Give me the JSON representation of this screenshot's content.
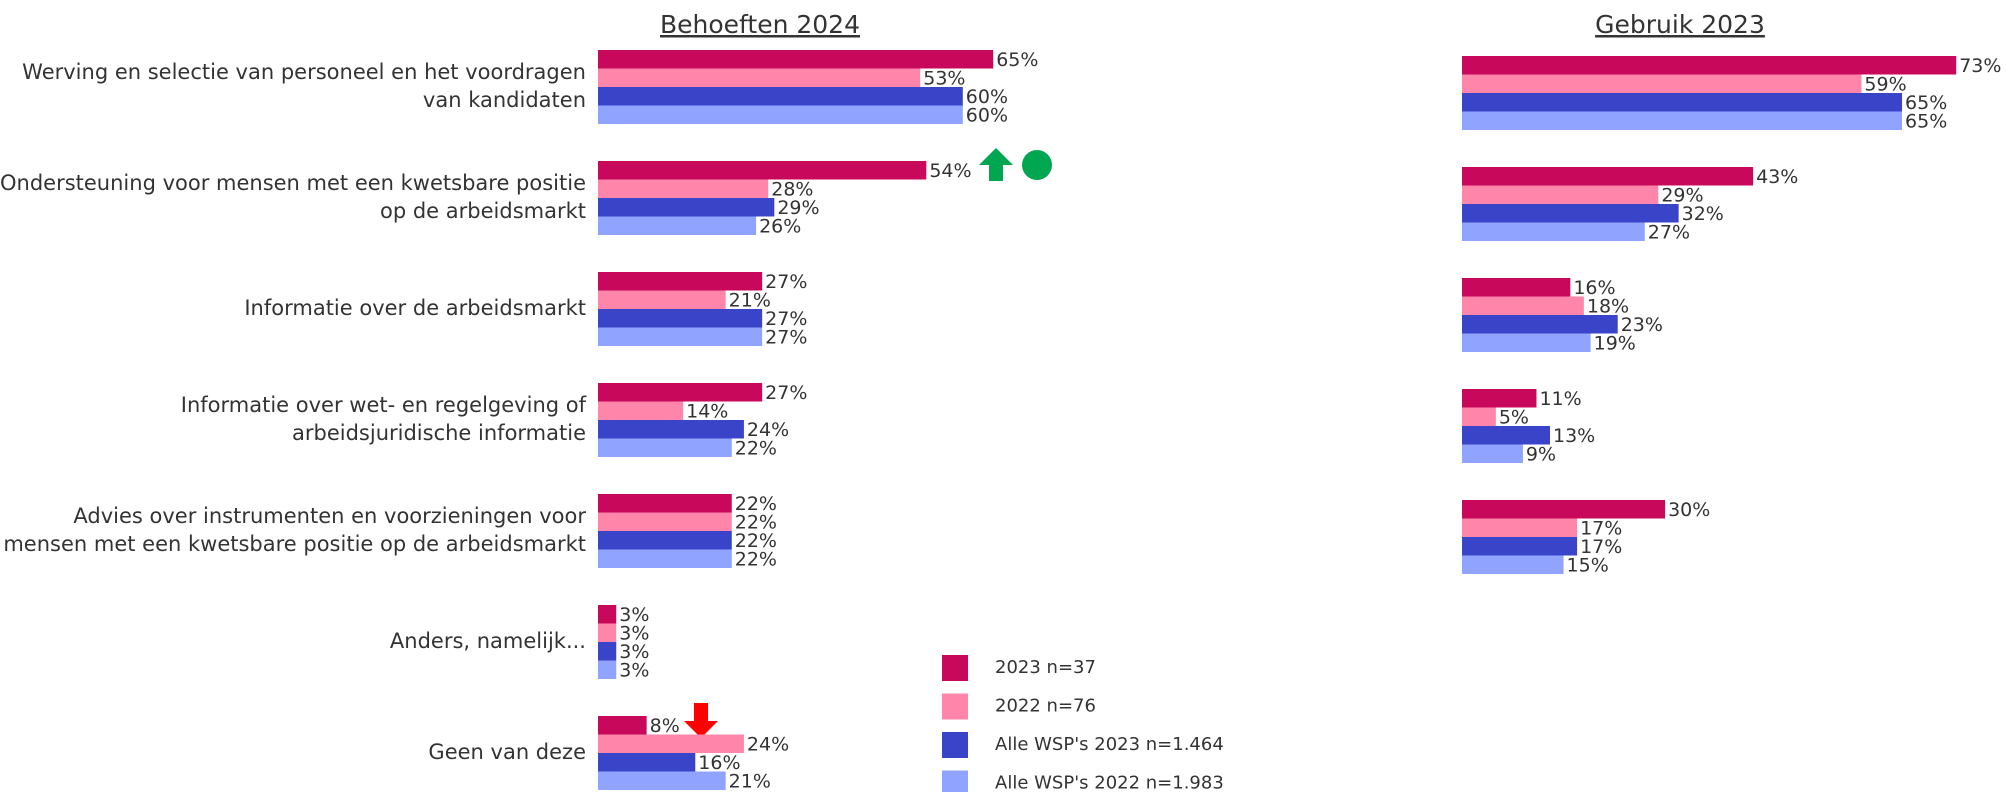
{
  "chart_data": [
    {
      "type": "bar",
      "orientation": "horizontal",
      "title": "Behoeften 2024",
      "categories": [
        [
          "Werving en selectie van personeel en het voordragen",
          "van kandidaten"
        ],
        [
          "Ondersteuning voor mensen met een kwetsbare positie",
          "op de arbeidsmarkt"
        ],
        [
          "Informatie over de arbeidsmarkt"
        ],
        [
          "Informatie over wet- en regelgeving of",
          "arbeidsjuridische informatie"
        ],
        [
          "Advies over instrumenten en voorzieningen voor",
          "mensen met een kwetsbare positie op de arbeidsmarkt"
        ],
        [
          "Anders, namelijk..."
        ],
        [
          "Geen van deze"
        ]
      ],
      "series": [
        {
          "name": "2023 n=37",
          "color": "#c8085a",
          "values": [
            65,
            54,
            27,
            27,
            22,
            3,
            8
          ],
          "value_labels": [
            "65%",
            "54%",
            "27%",
            "27%",
            "22%",
            "3%",
            "8%"
          ]
        },
        {
          "name": "2022 n=76",
          "color": "#ff85aa",
          "values": [
            53,
            28,
            21,
            14,
            22,
            3,
            24
          ],
          "value_labels": [
            "53%",
            "28%",
            "21%",
            "14%",
            "22%",
            "3%",
            "24%"
          ]
        },
        {
          "name": "Alle WSP's 2023 n=1.464",
          "color": "#3a44c8",
          "values": [
            60,
            29,
            27,
            24,
            22,
            3,
            16
          ],
          "value_labels": [
            "60%",
            "29%",
            "27%",
            "24%",
            "22%",
            "3%",
            "16%"
          ]
        },
        {
          "name": "Alle WSP's 2022 n=1.983",
          "color": "#8fa3ff",
          "values": [
            60,
            26,
            27,
            22,
            22,
            3,
            21
          ],
          "value_labels": [
            "60%",
            "26%",
            "27%",
            "22%",
            "22%",
            "3%",
            "21%"
          ]
        }
      ]
    },
    {
      "type": "bar",
      "orientation": "horizontal",
      "title": "Gebruik 2023",
      "series": [
        {
          "color": "#c8085a",
          "values": [
            73,
            43,
            16,
            11,
            30
          ],
          "value_labels": [
            "73%",
            "43%",
            "16%",
            "11%",
            "30%"
          ]
        },
        {
          "color": "#ff85aa",
          "values": [
            59,
            29,
            18,
            5,
            17
          ],
          "value_labels": [
            "59%",
            "29%",
            "18%",
            "5%",
            "17%"
          ]
        },
        {
          "color": "#3a44c8",
          "values": [
            65,
            32,
            23,
            13,
            17
          ],
          "value_labels": [
            "65%",
            "32%",
            "23%",
            "13%",
            "17%"
          ]
        },
        {
          "color": "#8fa3ff",
          "values": [
            65,
            27,
            19,
            9,
            15
          ],
          "value_labels": [
            "65%",
            "27%",
            "19%",
            "9%",
            "15%"
          ]
        }
      ]
    }
  ]
}
